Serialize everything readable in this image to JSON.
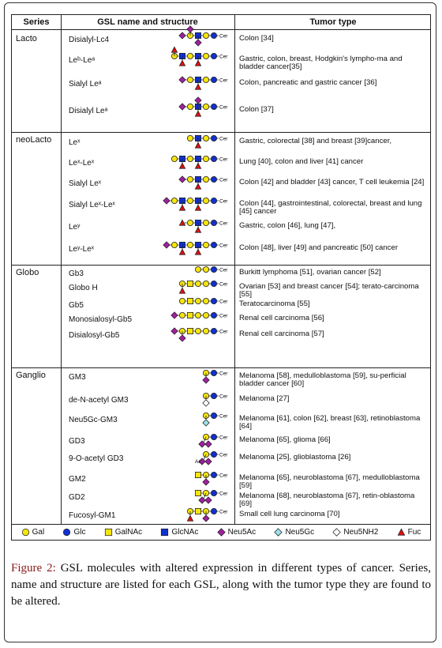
{
  "table": {
    "headers": {
      "series": "Series",
      "structure": "GSL name and structure",
      "tumor": "Tumor type"
    },
    "ceramide_label": "Cer",
    "groups": [
      {
        "series": "Lacto",
        "rows": [
          {
            "name": "Disialyl-Lc4",
            "tumor": "Colon [34]",
            "sugars": [
              "neu5ac",
              "gal",
              "glcnac",
              "gal",
              "glc"
            ],
            "branches": [
              {
                "at": 1,
                "type": "neu5ac",
                "pos": "up"
              },
              {
                "at": 2,
                "type": "neu5ac",
                "pos": "down"
              }
            ]
          },
          {
            "name": "Leᵇ-Leᵃ",
            "tumor": "Gastric, colon, breast, Hodgkin's lympho-ma and bladder cancer[35]",
            "sugars": [
              "gal",
              "glcnac",
              "gal",
              "glcnac",
              "gal",
              "glc"
            ],
            "branches": [
              {
                "at": 1,
                "type": "fuc",
                "pos": "down"
              },
              {
                "at": 3,
                "type": "fuc",
                "pos": "down"
              },
              {
                "at": 0,
                "type": "fuc",
                "pos": "up"
              }
            ]
          },
          {
            "name": "Sialyl Leᵃ",
            "tumor": "Colon, pancreatic and gastric cancer [36]",
            "sugars": [
              "neu5ac",
              "gal",
              "glcnac",
              "gal",
              "glc"
            ],
            "branches": [
              {
                "at": 2,
                "type": "fuc",
                "pos": "down"
              }
            ]
          },
          {
            "name": "Disialyl Leᵃ",
            "tumor": "Colon [37]",
            "sugars": [
              "neu5ac",
              "gal",
              "glcnac",
              "gal",
              "glc"
            ],
            "branches": [
              {
                "at": 2,
                "type": "neu5ac",
                "pos": "up"
              },
              {
                "at": 2,
                "type": "fuc",
                "pos": "down"
              }
            ]
          }
        ]
      },
      {
        "series": "neoLacto",
        "rows": [
          {
            "name": "Leˣ",
            "tumor": "Gastric, colorectal [38] and breast [39]cancer,",
            "sugars": [
              "gal",
              "glcnac",
              "gal",
              "glc"
            ],
            "branches": [
              {
                "at": 1,
                "type": "fuc",
                "pos": "down"
              }
            ]
          },
          {
            "name": "Leˣ-Leˣ",
            "tumor": "Lung [40], colon and liver [41] cancer",
            "sugars": [
              "gal",
              "glcnac",
              "gal",
              "glcnac",
              "gal",
              "glc"
            ],
            "branches": [
              {
                "at": 1,
                "type": "fuc",
                "pos": "down"
              },
              {
                "at": 3,
                "type": "fuc",
                "pos": "down"
              }
            ]
          },
          {
            "name": "Sialyl Leˣ",
            "tumor": "Colon [42] and bladder [43] cancer, T cell leukemia [24]",
            "sugars": [
              "neu5ac",
              "gal",
              "glcnac",
              "gal",
              "glc"
            ],
            "branches": [
              {
                "at": 2,
                "type": "fuc",
                "pos": "down"
              }
            ]
          },
          {
            "name": "Sialyl Leˣ-Leˣ",
            "tumor": "Colon [44], gastrointestinal, colorectal, breast and lung [45] cancer",
            "sugars": [
              "neu5ac",
              "gal",
              "glcnac",
              "gal",
              "glcnac",
              "gal",
              "glc"
            ],
            "branches": [
              {
                "at": 2,
                "type": "fuc",
                "pos": "down"
              },
              {
                "at": 4,
                "type": "fuc",
                "pos": "down"
              }
            ]
          },
          {
            "name": "Leʸ",
            "tumor": "Gastric, colon [46], lung [47],",
            "sugars": [
              "fuc",
              "gal",
              "glcnac",
              "gal",
              "glc"
            ],
            "branches": [
              {
                "at": 2,
                "type": "fuc",
                "pos": "down"
              }
            ]
          },
          {
            "name": "Leʸ-Leˣ",
            "tumor": "Colon [48], liver [49] and pancreatic [50] cancer",
            "sugars": [
              "neu5ac",
              "gal",
              "glcnac",
              "gal",
              "glcnac",
              "gal",
              "glc"
            ],
            "branches": [
              {
                "at": 2,
                "type": "fuc",
                "pos": "down"
              },
              {
                "at": 4,
                "type": "fuc",
                "pos": "down"
              }
            ]
          }
        ]
      },
      {
        "series": "Globo",
        "rows": [
          {
            "name": "Gb3",
            "tumor": "Burkitt lymphoma [51], ovarian cancer [52]",
            "sugars": [
              "gal",
              "gal",
              "glc"
            ],
            "branches": []
          },
          {
            "name": "Globo H",
            "tumor": "Ovarian [53] and breast cancer [54]; terato-carcinoma [55]",
            "sugars": [
              "gal",
              "galnac",
              "gal",
              "gal",
              "glc"
            ],
            "branches": [
              {
                "at": 0,
                "type": "fuc",
                "pos": "down"
              }
            ]
          },
          {
            "name": "Gb5",
            "tumor": "Teratocarcinoma [55]",
            "sugars": [
              "gal",
              "galnac",
              "gal",
              "gal",
              "glc"
            ],
            "branches": []
          },
          {
            "name": "Monosialosyl-Gb5",
            "tumor": "Renal cell carcinoma [56]",
            "sugars": [
              "neu5ac",
              "gal",
              "galnac",
              "gal",
              "gal",
              "glc"
            ],
            "branches": []
          },
          {
            "name": "Disialosyl-Gb5",
            "tumor": "Renal cell carcinoma [57]",
            "sugars": [
              "neu5ac",
              "gal",
              "galnac",
              "gal",
              "gal",
              "glc"
            ],
            "branches": [
              {
                "at": 1,
                "type": "neu5ac",
                "pos": "down"
              }
            ]
          }
        ]
      },
      {
        "series": "Ganglio",
        "rows": [
          {
            "name": "GM3",
            "tumor": "Melanoma [58], medulloblastoma [59], su-perficial bladder cancer [60]",
            "sugars": [
              "gal",
              "glc"
            ],
            "branches": [
              {
                "at": 0,
                "type": "neu5ac",
                "pos": "down"
              }
            ]
          },
          {
            "name": "de-N-acetyl GM3",
            "tumor": "Melanoma [27]",
            "sugars": [
              "gal",
              "glc"
            ],
            "branches": [
              {
                "at": 0,
                "type": "neu5nh2",
                "pos": "down"
              }
            ]
          },
          {
            "name": "Neu5Gc-GM3",
            "tumor": "Melanoma [61], colon [62], breast [63], retinoblastoma [64]",
            "sugars": [
              "gal",
              "glc"
            ],
            "branches": [
              {
                "at": 0,
                "type": "neu5gc",
                "pos": "down"
              }
            ]
          },
          {
            "name": "GD3",
            "tumor": "Melanoma [65], glioma [66]",
            "sugars": [
              "gal",
              "glc"
            ],
            "branches": [
              {
                "at": 0,
                "type": "neu5ac",
                "pos": "down2"
              }
            ]
          },
          {
            "name": "9-O-acetyl GD3",
            "tumor": "Melanoma [25], glioblastoma [26]",
            "sugars": [
              "gal",
              "glc"
            ],
            "branches": [
              {
                "at": 0,
                "type": "neu5ac",
                "pos": "down2"
              }
            ],
            "note": "Ac"
          },
          {
            "name": "GM2",
            "tumor": "Melanoma [65], neuroblastoma [67], medulloblastoma [59]",
            "sugars": [
              "galnac",
              "gal",
              "glc"
            ],
            "branches": [
              {
                "at": 1,
                "type": "neu5ac",
                "pos": "down"
              }
            ]
          },
          {
            "name": "GD2",
            "tumor": "Melanoma [68], neuroblastoma [67], retin-oblastoma [69]",
            "sugars": [
              "galnac",
              "gal",
              "glc"
            ],
            "branches": [
              {
                "at": 1,
                "type": "neu5ac",
                "pos": "down2"
              }
            ]
          },
          {
            "name": "Fucosyl-GM1",
            "tumor": "Small cell lung carcinoma [70]",
            "sugars": [
              "gal",
              "galnac",
              "gal",
              "glc"
            ],
            "branches": [
              {
                "at": 0,
                "type": "fuc",
                "pos": "down"
              },
              {
                "at": 2,
                "type": "neu5ac",
                "pos": "down"
              }
            ]
          }
        ]
      }
    ],
    "legend": [
      {
        "type": "gal",
        "label": "Gal"
      },
      {
        "type": "glc",
        "label": "Glc"
      },
      {
        "type": "galnac",
        "label": "GalNAc"
      },
      {
        "type": "glcnac",
        "label": "GlcNAc"
      },
      {
        "type": "neu5ac",
        "label": "Neu5Ac"
      },
      {
        "type": "neu5gc",
        "label": "Neu5Gc"
      },
      {
        "type": "neu5nh2",
        "label": "Neu5NH2"
      },
      {
        "type": "fuc",
        "label": "Fuc"
      }
    ],
    "colors": {
      "gal": "#f5e50a",
      "glc": "#1030d0",
      "galnac": "#f5e50a",
      "glcnac": "#1030d0",
      "neu5ac": "#a020a0",
      "neu5gc": "#9ee0e8",
      "neu5nh2": "#ffffff",
      "fuc": "#e01010"
    }
  },
  "caption": {
    "label": "Figure 2:",
    "text": " GSL molecules with altered expression in different types of cancer. Series, name and structure are listed for each GSL, along with the tumor type they are found to be altered."
  }
}
